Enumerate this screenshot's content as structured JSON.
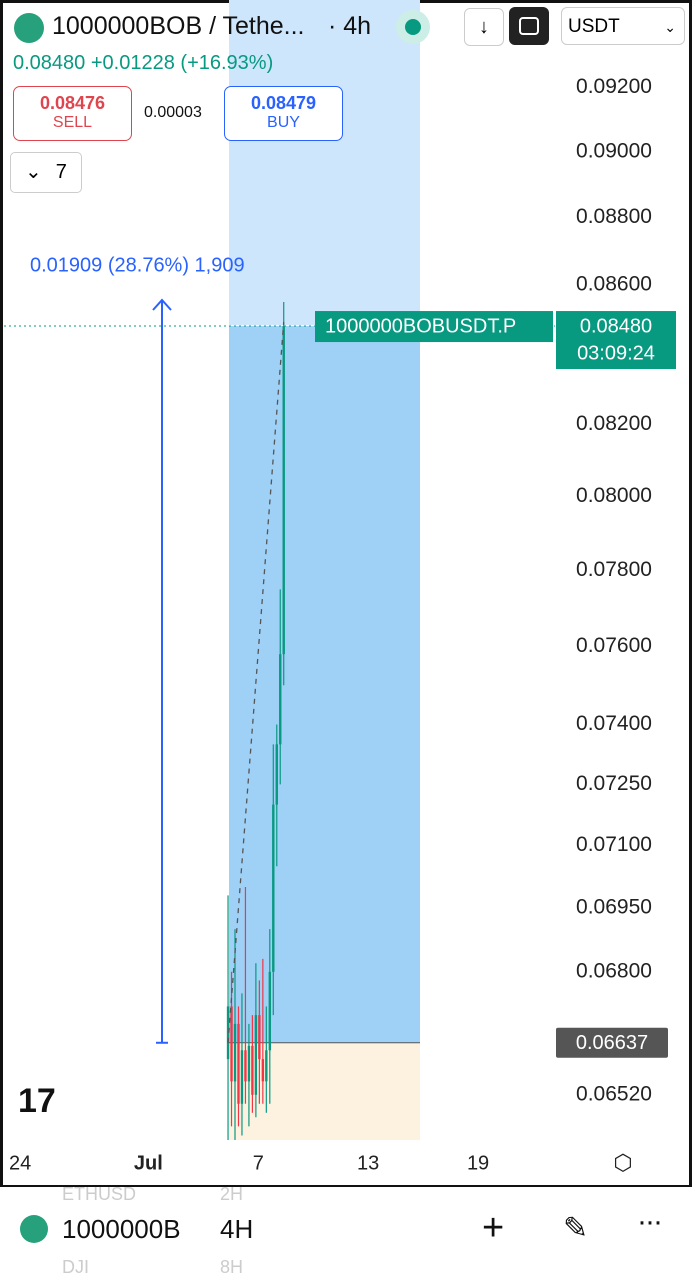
{
  "header": {
    "symbol": "1000000BOB / Tethe...",
    "interval": "· 4h",
    "quote_currency": "USDT"
  },
  "quote_line": {
    "price": "0.08480",
    "change": "+0.01228",
    "change_pct": "(+16.93%)"
  },
  "trade": {
    "sell_price": "0.08476",
    "sell_label": "SELL",
    "spread": "0.00003",
    "buy_price": "0.08479",
    "buy_label": "BUY"
  },
  "indicators_count": "7",
  "chart_data": {
    "type": "candlestick",
    "x": [
      11.35,
      11.54,
      11.73,
      11.92,
      12.11,
      12.3,
      12.49,
      12.68,
      12.87,
      13.06,
      13.25,
      13.44,
      13.63,
      13.82,
      14.01,
      14.2,
      14.39
    ],
    "open": [
      0.066,
      0.0672,
      0.0655,
      0.0668,
      0.065,
      0.0662,
      0.0655,
      0.0663,
      0.0652,
      0.067,
      0.066,
      0.0655,
      0.0662,
      0.068,
      0.072,
      0.0735,
      0.0758
    ],
    "high": [
      0.0698,
      0.068,
      0.069,
      0.0672,
      0.0675,
      0.07,
      0.0668,
      0.067,
      0.0682,
      0.0678,
      0.0683,
      0.0672,
      0.069,
      0.0735,
      0.074,
      0.0775,
      0.0855
    ],
    "low": [
      0.0642,
      0.0645,
      0.0642,
      0.0645,
      0.0643,
      0.065,
      0.0645,
      0.0648,
      0.0647,
      0.065,
      0.065,
      0.0648,
      0.065,
      0.067,
      0.0705,
      0.0725,
      0.075
    ],
    "close": [
      0.0672,
      0.0655,
      0.0668,
      0.065,
      0.0662,
      0.0655,
      0.0663,
      0.0652,
      0.067,
      0.066,
      0.0655,
      0.0662,
      0.068,
      0.072,
      0.0735,
      0.0758,
      0.0848
    ],
    "up_color": "#089981",
    "down_color": "#f23645",
    "log_scale": true,
    "ylim": [
      0.0642,
      0.0948
    ],
    "yticks": [
      {
        "value": 0.092,
        "label": "0.09200"
      },
      {
        "value": 0.09,
        "label": "0.09000"
      },
      {
        "value": 0.088,
        "label": "0.08800"
      },
      {
        "value": 0.086,
        "label": "0.08600"
      },
      {
        "value": 0.082,
        "label": "0.08200"
      },
      {
        "value": 0.08,
        "label": "0.08000"
      },
      {
        "value": 0.078,
        "label": "0.07800"
      },
      {
        "value": 0.076,
        "label": "0.07600"
      },
      {
        "value": 0.074,
        "label": "0.07400"
      },
      {
        "value": 0.0725,
        "label": "0.07250"
      },
      {
        "value": 0.071,
        "label": "0.07100"
      },
      {
        "value": 0.0695,
        "label": "0.06950"
      },
      {
        "value": 0.068,
        "label": "0.06800"
      },
      {
        "value": 0.0652,
        "label": "0.06520"
      }
    ],
    "xlim": [
      -1.1,
      29.2
    ],
    "xticks": [
      {
        "value": 0,
        "label": "24"
      },
      {
        "value": 7,
        "label": "Jul"
      },
      {
        "value": 13,
        "label": "7"
      },
      {
        "value": 19,
        "label": "13"
      },
      {
        "value": 25,
        "label": "19"
      }
    ],
    "last_price": {
      "symbol": "1000000BOBUSDT.P",
      "value": 0.0848,
      "label": "0.08480",
      "countdown": "03:09:24"
    },
    "entry_price": {
      "value": 0.06637,
      "label": "0.06637"
    },
    "measure": {
      "label": "0.01909 (28.76%) 1,909"
    }
  },
  "bottom_bar": {
    "symbol": "1000000B",
    "interval": "4H",
    "faded_symbol_above": "ETHUSD",
    "faded_interval_above": "2H",
    "faded_symbol_below": "DJI",
    "faded_interval_below": "8H"
  }
}
